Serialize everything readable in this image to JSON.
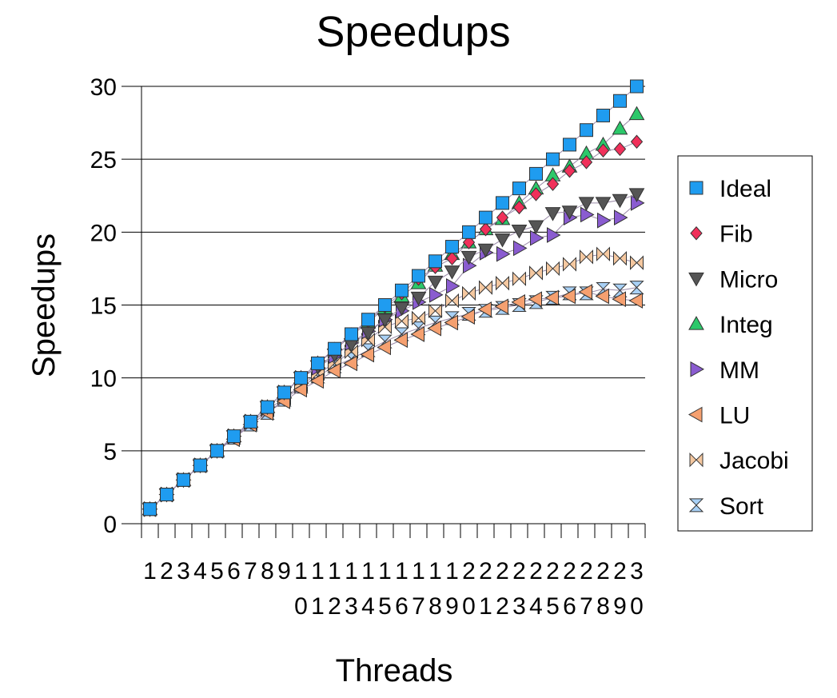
{
  "chart_data": {
    "type": "line",
    "title": "Speedups",
    "xlabel": "Threads",
    "ylabel": "Speedups",
    "ylim": [
      0,
      30
    ],
    "yticks": [
      0,
      5,
      10,
      15,
      20,
      25,
      30
    ],
    "grid": "horizontal",
    "legend_position": "right",
    "x": [
      1,
      2,
      3,
      4,
      5,
      6,
      7,
      8,
      9,
      10,
      11,
      12,
      13,
      14,
      15,
      16,
      17,
      18,
      19,
      20,
      21,
      22,
      23,
      24,
      25,
      26,
      27,
      28,
      29,
      30
    ],
    "x_tick_labels": [
      "1",
      "2",
      "3",
      "4",
      "5",
      "6",
      "7",
      "8",
      "9",
      "10",
      "11",
      "12",
      "13",
      "14",
      "15",
      "16",
      "17",
      "18",
      "19",
      "20",
      "21",
      "22",
      "23",
      "24",
      "25",
      "26",
      "27",
      "28",
      "29",
      "30"
    ],
    "series": [
      {
        "name": "Ideal",
        "marker": "square",
        "color": "#1f9cf0",
        "values": [
          1,
          2,
          3,
          4,
          5,
          6,
          7,
          8,
          9,
          10,
          11,
          12,
          13,
          14,
          15,
          16,
          17,
          18,
          19,
          20,
          21,
          22,
          23,
          24,
          25,
          26,
          27,
          28,
          29,
          30
        ]
      },
      {
        "name": "Fib",
        "marker": "diamond",
        "color": "#f0305a",
        "values": [
          1,
          2,
          3,
          4,
          5,
          6,
          7,
          8,
          9,
          10,
          11,
          12,
          13,
          13.9,
          14.9,
          15.8,
          16.8,
          17.6,
          18.2,
          19.3,
          20.2,
          21,
          21.7,
          22.6,
          23.3,
          24.2,
          24.8,
          25.6,
          25.7,
          26.2
        ]
      },
      {
        "name": "Micro",
        "marker": "triangle-down",
        "color": "#555555",
        "values": [
          1,
          2,
          3,
          4,
          5,
          6,
          7,
          8,
          9,
          10,
          10.8,
          11.6,
          12.3,
          13.1,
          14,
          14.8,
          15.5,
          16.6,
          17.3,
          18.3,
          18.8,
          19.5,
          20.1,
          20.4,
          21.3,
          21.4,
          22,
          22,
          22.2,
          22.6
        ]
      },
      {
        "name": "Integ",
        "marker": "triangle-up",
        "color": "#2cc86a",
        "values": [
          1,
          2,
          3,
          4,
          5,
          6,
          7,
          8,
          9,
          10,
          11,
          11.9,
          12.9,
          13.8,
          14.8,
          15.6,
          16.5,
          17.7,
          18.5,
          19.3,
          20.2,
          20.9,
          22,
          23,
          23.9,
          24.5,
          25.4,
          26,
          27.1,
          28.1
        ]
      },
      {
        "name": "MM",
        "marker": "triangle-right",
        "color": "#8a5cd0",
        "values": [
          1,
          2,
          3,
          4,
          5,
          6,
          7,
          8,
          9,
          10,
          10.7,
          11.5,
          12.4,
          13.2,
          14,
          14.6,
          15.2,
          15.7,
          16.3,
          17.7,
          18.6,
          18.5,
          18.9,
          19.6,
          19.8,
          21,
          21.2,
          20.8,
          21,
          22
        ]
      },
      {
        "name": "LU",
        "marker": "triangle-left",
        "color": "#f5a070",
        "values": [
          1,
          2,
          3,
          4,
          5,
          5.8,
          6.8,
          7.6,
          8.4,
          9.2,
          9.8,
          10.5,
          11,
          11.6,
          12.1,
          12.6,
          13,
          13.4,
          13.8,
          14.2,
          14.7,
          14.9,
          15.2,
          15.4,
          15.5,
          15.6,
          15.9,
          15.6,
          15.4,
          15.3
        ]
      },
      {
        "name": "Jacobi",
        "marker": "bowtie",
        "color": "#f5c8a0",
        "values": [
          1,
          2,
          3,
          4,
          5,
          6,
          6.9,
          7.8,
          8.6,
          9.5,
          10.3,
          11,
          11.8,
          12.6,
          13.5,
          13.9,
          14.1,
          14.6,
          15.3,
          15.8,
          16.2,
          16.5,
          16.8,
          17.2,
          17.5,
          17.8,
          18.3,
          18.5,
          18.2,
          17.9
        ]
      },
      {
        "name": "Sort",
        "marker": "hourglass",
        "color": "#a8d0f5",
        "values": [
          1,
          2,
          3,
          4,
          5,
          5.9,
          6.8,
          7.6,
          8.5,
          9.4,
          10.1,
          10.8,
          11.3,
          11.9,
          12.5,
          13,
          13.4,
          13.8,
          14.1,
          14.4,
          14.6,
          14.8,
          15,
          15.2,
          15.5,
          15.8,
          15.8,
          16.1,
          16,
          16.2
        ]
      }
    ]
  }
}
